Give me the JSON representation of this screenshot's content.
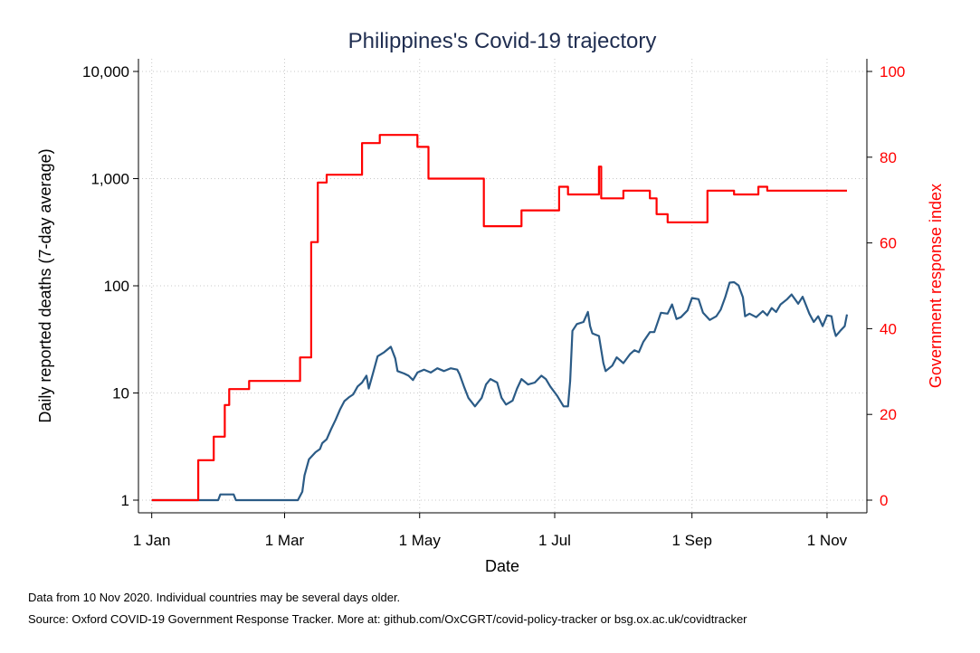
{
  "chart_data": {
    "type": "line",
    "title": "Philippines's Covid-19 trajectory",
    "xlabel": "Date",
    "ylabel_left": "Daily reported deaths (7-day average)",
    "ylabel_right": "Government response index",
    "x_ticks": [
      "1 Jan",
      "1 Mar",
      "1 May",
      "1 Jul",
      "1 Sep",
      "1 Nov"
    ],
    "y_left_ticks": [
      "1",
      "10",
      "100",
      "1,000",
      "10,000"
    ],
    "y_right_ticks": [
      "0",
      "20",
      "40",
      "60",
      "80",
      "100"
    ],
    "y_left_scale": "log",
    "y_left_range": [
      1,
      10000
    ],
    "y_right_range": [
      0,
      100
    ],
    "grid": true,
    "colors": {
      "deaths": "#2b5b86",
      "response": "#ff0000",
      "right_axis": "#ff0000",
      "title": "#1f2d50"
    },
    "series": [
      {
        "key": "deaths",
        "axis": "left",
        "points": [
          [
            "2020-01-01",
            1
          ],
          [
            "2020-01-31",
            1
          ],
          [
            "2020-02-01",
            1.13
          ],
          [
            "2020-02-07",
            1.13
          ],
          [
            "2020-02-08",
            1
          ],
          [
            "2020-03-07",
            1
          ],
          [
            "2020-03-09",
            1.2
          ],
          [
            "2020-03-10",
            1.7
          ],
          [
            "2020-03-12",
            2.4
          ],
          [
            "2020-03-15",
            2.8
          ],
          [
            "2020-03-17",
            3.0
          ],
          [
            "2020-03-18",
            3.4
          ],
          [
            "2020-03-20",
            3.7
          ],
          [
            "2020-03-22",
            4.6
          ],
          [
            "2020-03-24",
            5.6
          ],
          [
            "2020-03-26",
            7.0
          ],
          [
            "2020-03-28",
            8.4
          ],
          [
            "2020-03-30",
            9.1
          ],
          [
            "2020-04-01",
            9.7
          ],
          [
            "2020-04-03",
            11.5
          ],
          [
            "2020-04-05",
            12.5
          ],
          [
            "2020-04-07",
            14.5
          ],
          [
            "2020-04-08",
            11
          ],
          [
            "2020-04-10",
            15.5
          ],
          [
            "2020-04-12",
            22
          ],
          [
            "2020-04-15",
            24
          ],
          [
            "2020-04-18",
            27
          ],
          [
            "2020-04-20",
            21
          ],
          [
            "2020-04-21",
            16
          ],
          [
            "2020-04-24",
            15.2
          ],
          [
            "2020-04-26",
            14.5
          ],
          [
            "2020-04-28",
            13.2
          ],
          [
            "2020-04-30",
            15.5
          ],
          [
            "2020-05-03",
            16.5
          ],
          [
            "2020-05-06",
            15.5
          ],
          [
            "2020-05-09",
            17
          ],
          [
            "2020-05-12",
            16
          ],
          [
            "2020-05-15",
            17
          ],
          [
            "2020-05-18",
            16.5
          ],
          [
            "2020-05-19",
            15
          ],
          [
            "2020-05-21",
            11.5
          ],
          [
            "2020-05-23",
            9
          ],
          [
            "2020-05-26",
            7.5
          ],
          [
            "2020-05-29",
            9
          ],
          [
            "2020-05-31",
            12
          ],
          [
            "2020-06-02",
            13.5
          ],
          [
            "2020-06-05",
            12.5
          ],
          [
            "2020-06-07",
            9
          ],
          [
            "2020-06-09",
            7.8
          ],
          [
            "2020-06-12",
            8.5
          ],
          [
            "2020-06-14",
            11
          ],
          [
            "2020-06-16",
            13.5
          ],
          [
            "2020-06-19",
            12
          ],
          [
            "2020-06-22",
            12.5
          ],
          [
            "2020-06-25",
            14.5
          ],
          [
            "2020-06-27",
            13.5
          ],
          [
            "2020-06-29",
            11.5
          ],
          [
            "2020-07-02",
            9.5
          ],
          [
            "2020-07-05",
            7.5
          ],
          [
            "2020-07-07",
            7.5
          ],
          [
            "2020-07-08",
            13
          ],
          [
            "2020-07-09",
            38
          ],
          [
            "2020-07-11",
            44
          ],
          [
            "2020-07-14",
            46
          ],
          [
            "2020-07-16",
            57
          ],
          [
            "2020-07-17",
            42
          ],
          [
            "2020-07-18",
            36
          ],
          [
            "2020-07-21",
            34
          ],
          [
            "2020-07-23",
            19
          ],
          [
            "2020-07-24",
            16
          ],
          [
            "2020-07-27",
            18
          ],
          [
            "2020-07-29",
            21.5
          ],
          [
            "2020-08-01",
            19
          ],
          [
            "2020-08-04",
            23
          ],
          [
            "2020-08-06",
            25
          ],
          [
            "2020-08-08",
            24
          ],
          [
            "2020-08-10",
            30
          ],
          [
            "2020-08-13",
            37
          ],
          [
            "2020-08-15",
            37
          ],
          [
            "2020-08-18",
            56
          ],
          [
            "2020-08-21",
            55
          ],
          [
            "2020-08-23",
            67
          ],
          [
            "2020-08-25",
            49
          ],
          [
            "2020-08-27",
            51
          ],
          [
            "2020-08-30",
            59
          ],
          [
            "2020-09-01",
            77
          ],
          [
            "2020-09-04",
            75
          ],
          [
            "2020-09-06",
            56
          ],
          [
            "2020-09-09",
            48
          ],
          [
            "2020-09-12",
            52
          ],
          [
            "2020-09-14",
            60
          ],
          [
            "2020-09-16",
            78
          ],
          [
            "2020-09-18",
            107
          ],
          [
            "2020-09-20",
            108
          ],
          [
            "2020-09-22",
            101
          ],
          [
            "2020-09-24",
            78
          ],
          [
            "2020-09-25",
            52
          ],
          [
            "2020-09-27",
            55
          ],
          [
            "2020-09-30",
            51
          ],
          [
            "2020-10-03",
            58
          ],
          [
            "2020-10-05",
            53
          ],
          [
            "2020-10-07",
            62
          ],
          [
            "2020-10-09",
            57
          ],
          [
            "2020-10-11",
            67
          ],
          [
            "2020-10-14",
            75
          ],
          [
            "2020-10-16",
            83
          ],
          [
            "2020-10-19",
            68
          ],
          [
            "2020-10-21",
            79
          ],
          [
            "2020-10-24",
            55
          ],
          [
            "2020-10-26",
            46
          ],
          [
            "2020-10-28",
            52
          ],
          [
            "2020-10-30",
            42
          ],
          [
            "2020-11-01",
            53
          ],
          [
            "2020-11-03",
            52
          ],
          [
            "2020-11-04",
            40
          ],
          [
            "2020-11-05",
            34
          ],
          [
            "2020-11-07",
            38
          ],
          [
            "2020-11-09",
            42
          ],
          [
            "2020-11-10",
            54
          ]
        ]
      },
      {
        "key": "response",
        "axis": "right",
        "step": true,
        "points": [
          [
            "2020-01-01",
            0
          ],
          [
            "2020-01-22",
            9.3
          ],
          [
            "2020-01-29",
            14.8
          ],
          [
            "2020-02-03",
            22.2
          ],
          [
            "2020-02-05",
            25.9
          ],
          [
            "2020-02-14",
            27.8
          ],
          [
            "2020-03-08",
            33.3
          ],
          [
            "2020-03-13",
            60.2
          ],
          [
            "2020-03-16",
            74.1
          ],
          [
            "2020-03-20",
            75.9
          ],
          [
            "2020-04-05",
            83.3
          ],
          [
            "2020-04-13",
            85.2
          ],
          [
            "2020-04-30",
            82.4
          ],
          [
            "2020-05-05",
            75.0
          ],
          [
            "2020-05-30",
            63.9
          ],
          [
            "2020-06-16",
            67.6
          ],
          [
            "2020-07-03",
            73.1
          ],
          [
            "2020-07-07",
            71.3
          ],
          [
            "2020-07-21",
            77.8
          ],
          [
            "2020-07-22",
            70.4
          ],
          [
            "2020-08-01",
            72.2
          ],
          [
            "2020-08-13",
            70.4
          ],
          [
            "2020-08-16",
            66.7
          ],
          [
            "2020-08-21",
            64.8
          ],
          [
            "2020-09-08",
            72.2
          ],
          [
            "2020-09-20",
            71.3
          ],
          [
            "2020-10-01",
            73.1
          ],
          [
            "2020-10-05",
            72.2
          ],
          [
            "2020-11-10",
            72.2
          ]
        ]
      }
    ]
  },
  "notes": {
    "line1": "Data from 10 Nov 2020. Individual countries may be several days older.",
    "line2": "Source: Oxford COVID-19 Government Response Tracker. More at: github.com/OxCGRT/covid-policy-tracker or bsg.ox.ac.uk/covidtracker"
  }
}
